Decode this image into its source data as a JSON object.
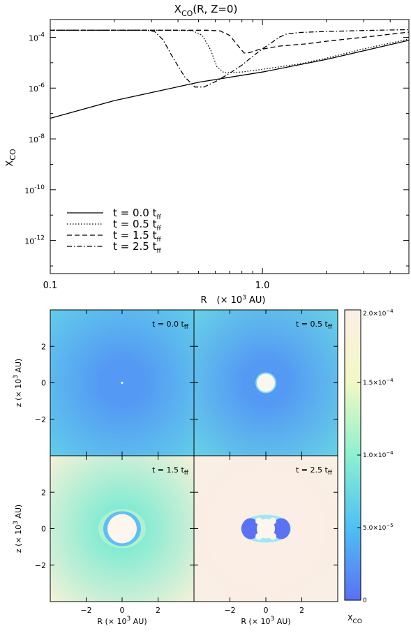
{
  "chart_data": [
    {
      "type": "line",
      "title": "X",
      "title_sub": "CO",
      "title_rest": "(R,  Z=0)",
      "xlabel": "R",
      "xlabel_rest": "(× 10",
      "xlabel_exp": "3",
      "xlabel_unit": " AU)",
      "ylabel": "X",
      "ylabel_sub": "CO",
      "x_scale": "log",
      "y_scale": "log",
      "xlim": [
        0.1,
        4.9
      ],
      "ylim": [
        5e-14,
        0.0005
      ],
      "x_ticks": [
        {
          "value": 0.1,
          "label": "0.1"
        },
        {
          "value": 1.0,
          "label": "1.0"
        }
      ],
      "y_ticks": [
        {
          "value": 0.0001,
          "base": "10",
          "exp": "-4"
        },
        {
          "value": 1e-06,
          "base": "10",
          "exp": "-6"
        },
        {
          "value": 1e-08,
          "base": "10",
          "exp": "-8"
        },
        {
          "value": 1e-10,
          "base": "10",
          "exp": "-10"
        },
        {
          "value": 1e-12,
          "base": "10",
          "exp": "-12"
        }
      ],
      "legend_position": "bottom-left",
      "series": [
        {
          "name": "t  =  0.0  t",
          "name_sub": "ff",
          "dash": "solid",
          "x": [
            0.1,
            0.2,
            0.5,
            1.0,
            2.0,
            4.9
          ],
          "y": [
            6.5e-08,
            3.2e-07,
            1.7e-06,
            4.3e-06,
            1.35e-05,
            7.6e-05
          ]
        },
        {
          "name": "t  =  0.5  t",
          "name_sub": "ff",
          "dash": "dotted",
          "x": [
            0.1,
            0.4,
            0.47,
            0.52,
            0.57,
            0.61,
            0.66,
            0.8,
            1.0,
            1.5,
            2.0,
            3.0,
            4.9
          ],
          "y": [
            0.00019,
            0.00019,
            0.00018,
            0.00012,
            3.2e-05,
            7e-06,
            4e-06,
            4.3e-06,
            5.5e-06,
            9e-06,
            1.5e-05,
            3.5e-05,
            8.5e-05
          ]
        },
        {
          "name": "t  =  1.5  t",
          "name_sub": "ff",
          "dash": "dashed",
          "x": [
            0.1,
            0.55,
            0.63,
            0.7,
            0.77,
            0.82,
            0.87,
            0.95,
            1.2,
            1.6,
            2.0,
            3.0,
            4.9
          ],
          "y": [
            0.00019,
            0.00019,
            0.00018,
            0.00012,
            4.5e-05,
            2.4e-05,
            2.5e-05,
            3.2e-05,
            4.5e-05,
            5.5e-05,
            7e-05,
            0.0001,
            0.00016
          ]
        },
        {
          "name": "t  =  2.5  t",
          "name_sub": "ff",
          "dash": "dashdot",
          "x": [
            0.1,
            0.28,
            0.31,
            0.34,
            0.38,
            0.43,
            0.48,
            0.53,
            0.6,
            0.7,
            0.8,
            0.9,
            1.0,
            1.1,
            1.2,
            1.3,
            1.5,
            2.0,
            3.0,
            4.9
          ],
          "y": [
            0.00019,
            0.00019,
            0.00017,
            8e-05,
            1.5e-05,
            2.8e-06,
            1.1e-06,
            1.1e-06,
            1.8e-06,
            3.8e-06,
            8e-06,
            1.8e-05,
            3.5e-05,
            6e-05,
            0.0001,
            0.000135,
            0.000155,
            0.00017,
            0.000185,
            0.0002
          ]
        }
      ]
    },
    {
      "type": "heatmap",
      "panels": [
        {
          "label": "t  =  0.0  t",
          "label_sub": "ff",
          "cavity": "none",
          "center_value": 2.5e-05,
          "edge_value": 6.5e-05
        },
        {
          "label": "t  =  0.5  t",
          "label_sub": "ff",
          "cavity": "circle",
          "center_value": 2.5e-05,
          "edge_value": 7e-05
        },
        {
          "label": "t  =  1.5  t",
          "label_sub": "ff",
          "cavity": "circle-large",
          "center_value": 9e-05,
          "edge_value": 0.00018
        },
        {
          "label": "t  =  2.5  t",
          "label_sub": "ff",
          "cavity": "dumbbell",
          "center_value": 0.00019,
          "edge_value": 0.000195
        }
      ],
      "xlabel": "R",
      "xlabel_rest": "(× 10",
      "xlabel_exp": "3",
      "xlabel_unit": " AU)",
      "ylabel": "z",
      "ylabel_rest": "(× 10",
      "ylabel_exp": "3",
      "ylabel_unit": " AU)",
      "xlim": [
        -4,
        4
      ],
      "ylim": [
        -4,
        4
      ],
      "ticks": [
        "−2",
        "0",
        "2"
      ],
      "colorbar": {
        "label": "X",
        "label_sub": "CO",
        "range": [
          0,
          0.0002
        ],
        "ticks": [
          {
            "value": 0,
            "text": "0",
            "exp": ""
          },
          {
            "value": 5e-05,
            "text": "5.0×10",
            "exp": "−5"
          },
          {
            "value": 0.0001,
            "text": "1.0×10",
            "exp": "−4"
          },
          {
            "value": 0.00015,
            "text": "1.5×10",
            "exp": "−4"
          },
          {
            "value": 0.0002,
            "text": "2.0×10",
            "exp": "−4"
          }
        ],
        "colors": [
          "#5a6ff5",
          "#4fc0f4",
          "#8df0cf",
          "#f2f8c4",
          "#fbeee6"
        ]
      }
    }
  ]
}
